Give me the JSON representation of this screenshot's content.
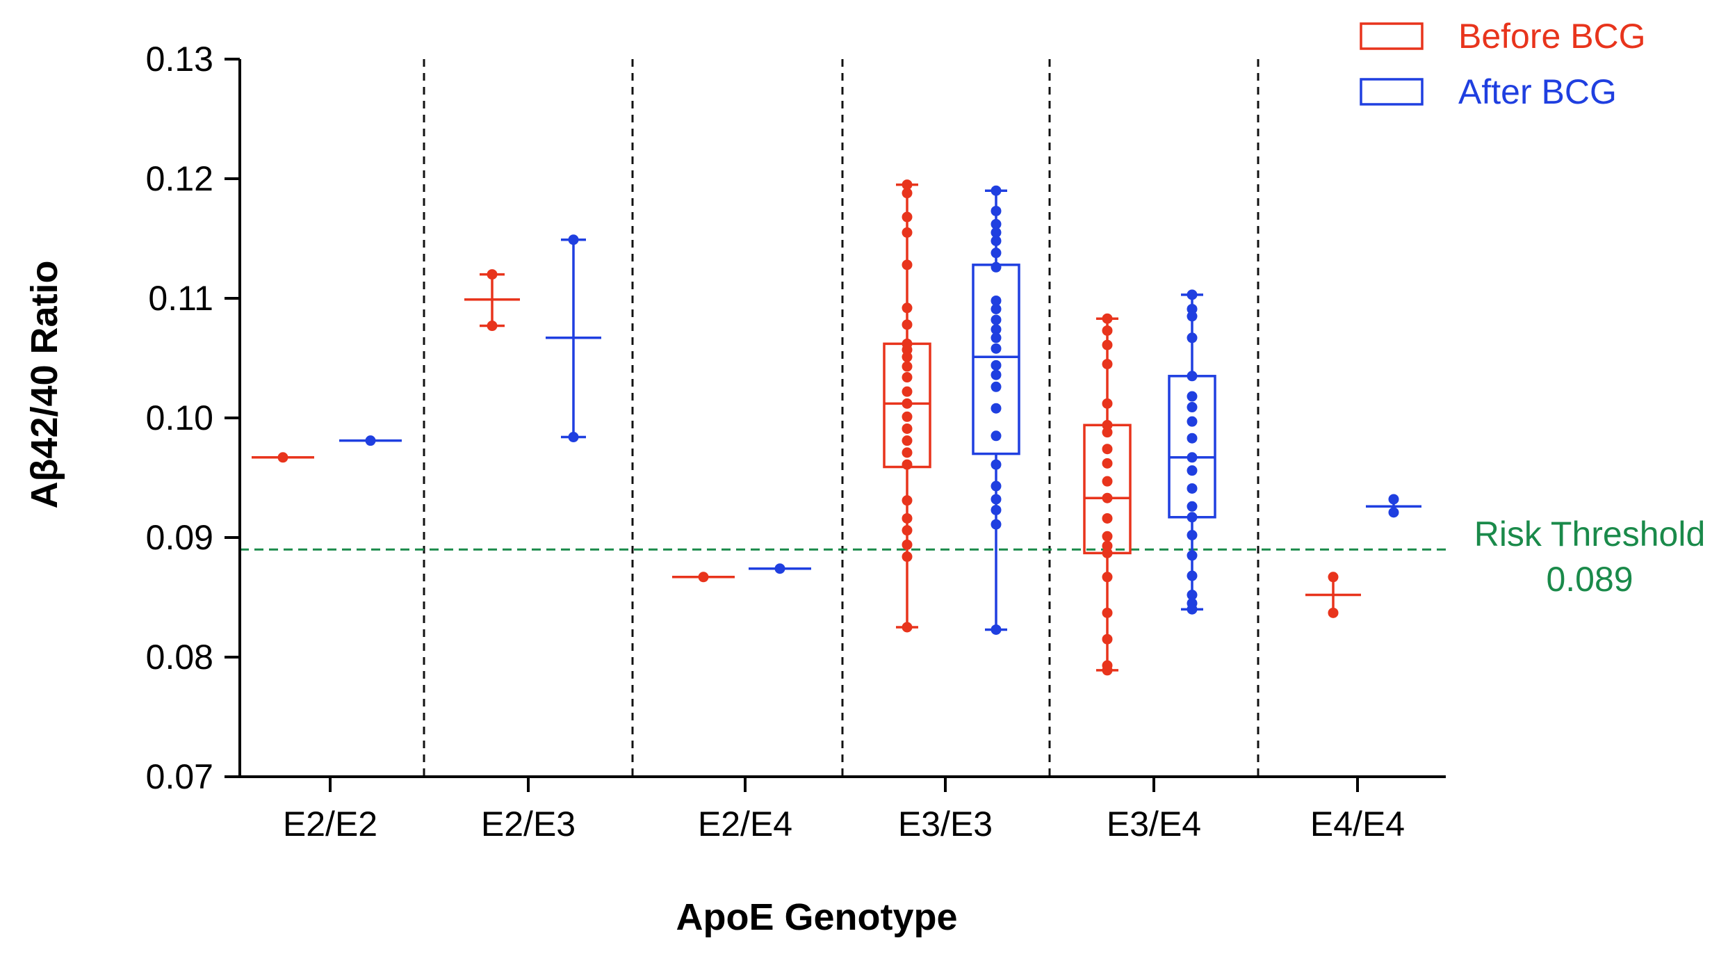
{
  "chart_data": {
    "type": "box",
    "title": "",
    "xlabel": "ApoE Genotype",
    "ylabel": "Aβ42/40 Ratio",
    "ylim": [
      0.07,
      0.13
    ],
    "yticks": [
      "0.07",
      "0.08",
      "0.09",
      "0.10",
      "0.11",
      "0.12",
      "0.13"
    ],
    "ytick_values": [
      0.07,
      0.08,
      0.09,
      0.1,
      0.11,
      0.12,
      0.13
    ],
    "categories": [
      "E2/E2",
      "E2/E3",
      "E2/E4",
      "E3/E3",
      "E3/E4",
      "E4/E4"
    ],
    "legend": {
      "position": "top-right",
      "entries": [
        {
          "label": "Before BCG",
          "color": "#e8341c"
        },
        {
          "label": "After BCG",
          "color": "#1f3fe0"
        }
      ]
    },
    "threshold": {
      "value": 0.089,
      "label": "Risk Threshold",
      "value_label": "0.089",
      "color": "#1a8a4a"
    },
    "series": [
      {
        "name": "Before BCG",
        "color": "#e8341c",
        "groups": [
          {
            "category": "E2/E2",
            "kind": "single",
            "median": 0.0967,
            "points": [
              0.0967
            ]
          },
          {
            "category": "E2/E3",
            "kind": "minmax",
            "min": 0.1077,
            "max": 0.112,
            "median": 0.1099,
            "points": [
              0.112,
              0.1077
            ]
          },
          {
            "category": "E2/E4",
            "kind": "single",
            "median": 0.0867,
            "points": [
              0.0867
            ]
          },
          {
            "category": "E3/E3",
            "kind": "box",
            "min": 0.0825,
            "q1": 0.0959,
            "median": 0.1012,
            "q3": 0.1062,
            "max": 0.1195,
            "points": [
              0.1195,
              0.1188,
              0.1168,
              0.1155,
              0.1128,
              0.1092,
              0.1078,
              0.1062,
              0.1057,
              0.1051,
              0.1043,
              0.1034,
              0.1022,
              0.1012,
              0.1001,
              0.0991,
              0.0981,
              0.0971,
              0.0961,
              0.0931,
              0.0916,
              0.0906,
              0.0894,
              0.0884,
              0.0825
            ]
          },
          {
            "category": "E3/E4",
            "kind": "box",
            "min": 0.0789,
            "q1": 0.0887,
            "median": 0.0933,
            "q3": 0.0994,
            "max": 0.1083,
            "points": [
              0.1083,
              0.1073,
              0.1061,
              0.1045,
              0.1012,
              0.0994,
              0.0988,
              0.0974,
              0.0962,
              0.0947,
              0.0933,
              0.0916,
              0.0901,
              0.0893,
              0.0887,
              0.0867,
              0.0837,
              0.0815,
              0.0793,
              0.0789
            ]
          },
          {
            "category": "E4/E4",
            "kind": "minmax",
            "min": 0.0837,
            "max": 0.0867,
            "median": 0.0852,
            "points": [
              0.0867,
              0.0837
            ]
          }
        ]
      },
      {
        "name": "After BCG",
        "color": "#1f3fe0",
        "groups": [
          {
            "category": "E2/E2",
            "kind": "single",
            "median": 0.0981,
            "points": [
              0.0981
            ]
          },
          {
            "category": "E2/E3",
            "kind": "minmax",
            "min": 0.0984,
            "max": 0.1149,
            "median": 0.1067,
            "points": [
              0.1149,
              0.0984
            ]
          },
          {
            "category": "E2/E4",
            "kind": "single",
            "median": 0.0874,
            "points": [
              0.0874
            ]
          },
          {
            "category": "E3/E3",
            "kind": "box",
            "min": 0.0823,
            "q1": 0.097,
            "median": 0.1051,
            "q3": 0.1128,
            "max": 0.119,
            "points": [
              0.119,
              0.1173,
              0.1162,
              0.1155,
              0.1148,
              0.1138,
              0.1126,
              0.1098,
              0.1091,
              0.1082,
              0.1074,
              0.1067,
              0.1058,
              0.1044,
              0.1036,
              0.1026,
              0.1008,
              0.0985,
              0.0961,
              0.0943,
              0.0932,
              0.0923,
              0.0911,
              0.0823
            ]
          },
          {
            "category": "E3/E4",
            "kind": "box",
            "min": 0.084,
            "q1": 0.0917,
            "median": 0.0967,
            "q3": 0.1035,
            "max": 0.1103,
            "points": [
              0.1103,
              0.1091,
              0.1085,
              0.1067,
              0.1035,
              0.1018,
              0.1009,
              0.0997,
              0.0983,
              0.0967,
              0.0956,
              0.0941,
              0.0926,
              0.0917,
              0.0902,
              0.0885,
              0.0868,
              0.0852,
              0.0845,
              0.084
            ]
          },
          {
            "category": "E4/E4",
            "kind": "minmax",
            "min": 0.0921,
            "max": 0.0932,
            "median": 0.0926,
            "points": [
              0.0932,
              0.0921
            ]
          }
        ]
      }
    ]
  }
}
